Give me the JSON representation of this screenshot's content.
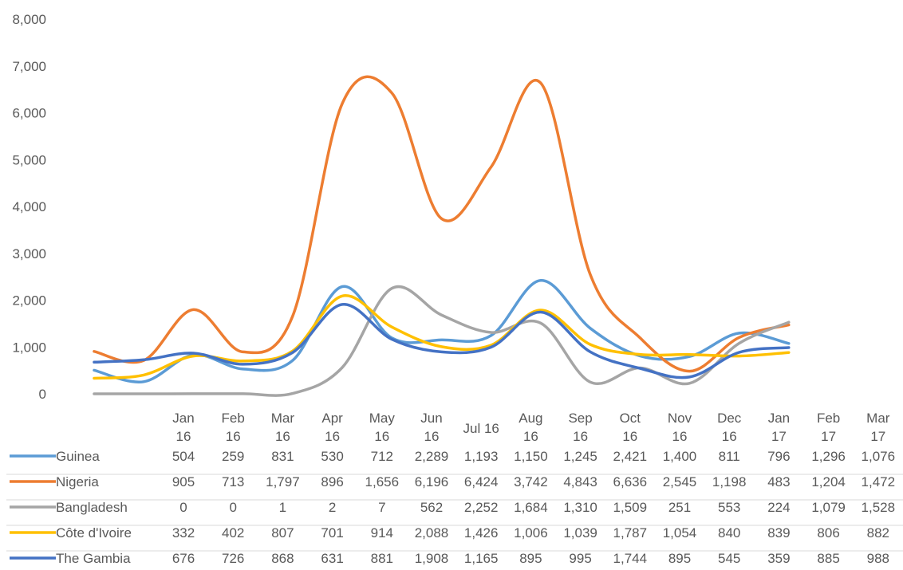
{
  "chart_data": {
    "type": "line",
    "categories": [
      [
        "Jan",
        "16"
      ],
      [
        "Feb",
        "16"
      ],
      [
        "Mar",
        "16"
      ],
      [
        "Apr",
        "16"
      ],
      [
        "May",
        "16"
      ],
      [
        "Jun",
        "16"
      ],
      [
        "Jul 16"
      ],
      [
        "Aug",
        "16"
      ],
      [
        "Sep",
        "16"
      ],
      [
        "Oct",
        "16"
      ],
      [
        "Nov",
        "16"
      ],
      [
        "Dec",
        "16"
      ],
      [
        "Jan",
        "17"
      ],
      [
        "Feb",
        "17"
      ],
      [
        "Mar",
        "17"
      ]
    ],
    "ylim": [
      0,
      8000
    ],
    "yticks": [
      "0",
      "1,000",
      "2,000",
      "3,000",
      "4,000",
      "5,000",
      "6,000",
      "7,000",
      "8,000"
    ],
    "yticks_values": [
      0,
      1000,
      2000,
      3000,
      4000,
      5000,
      6000,
      7000,
      8000
    ],
    "grid": false,
    "legend": "data-table-bottom",
    "series": [
      {
        "name": "Guinea",
        "color": "#5B9BD5",
        "values": [
          504,
          259,
          831,
          530,
          712,
          2289,
          1193,
          1150,
          1245,
          2421,
          1400,
          811,
          796,
          1296,
          1076
        ],
        "labels": [
          "504",
          "259",
          "831",
          "530",
          "712",
          "2,289",
          "1,193",
          "1,150",
          "1,245",
          "2,421",
          "1,400",
          "811",
          "796",
          "1,296",
          "1,076"
        ]
      },
      {
        "name": "Nigeria",
        "color": "#ED7D31",
        "values": [
          905,
          713,
          1797,
          896,
          1656,
          6196,
          6424,
          3742,
          4843,
          6636,
          2545,
          1198,
          483,
          1204,
          1472
        ],
        "labels": [
          "905",
          "713",
          "1,797",
          "896",
          "1,656",
          "6,196",
          "6,424",
          "3,742",
          "4,843",
          "6,636",
          "2,545",
          "1,198",
          "483",
          "1,204",
          "1,472"
        ]
      },
      {
        "name": "Bangladesh",
        "color": "#A5A5A5",
        "values": [
          0,
          0,
          1,
          2,
          7,
          562,
          2252,
          1684,
          1310,
          1509,
          251,
          553,
          224,
          1079,
          1528
        ],
        "labels": [
          "0",
          "0",
          "1",
          "2",
          "7",
          "562",
          "2,252",
          "1,684",
          "1,310",
          "1,509",
          "251",
          "553",
          "224",
          "1,079",
          "1,528"
        ]
      },
      {
        "name": "Côte d'Ivoire",
        "color": "#FFC000",
        "values": [
          332,
          402,
          807,
          701,
          914,
          2088,
          1426,
          1006,
          1039,
          1787,
          1054,
          840,
          839,
          806,
          882
        ],
        "labels": [
          "332",
          "402",
          "807",
          "701",
          "914",
          "2,088",
          "1,426",
          "1,006",
          "1,039",
          "1,787",
          "1,054",
          "840",
          "839",
          "806",
          "882"
        ]
      },
      {
        "name": "The Gambia",
        "color": "#4472C4",
        "values": [
          676,
          726,
          868,
          631,
          881,
          1908,
          1165,
          895,
          995,
          1744,
          895,
          545,
          359,
          885,
          988
        ],
        "labels": [
          "676",
          "726",
          "868",
          "631",
          "881",
          "1,908",
          "1,165",
          "895",
          "995",
          "1,744",
          "895",
          "545",
          "359",
          "885",
          "988"
        ]
      }
    ]
  }
}
